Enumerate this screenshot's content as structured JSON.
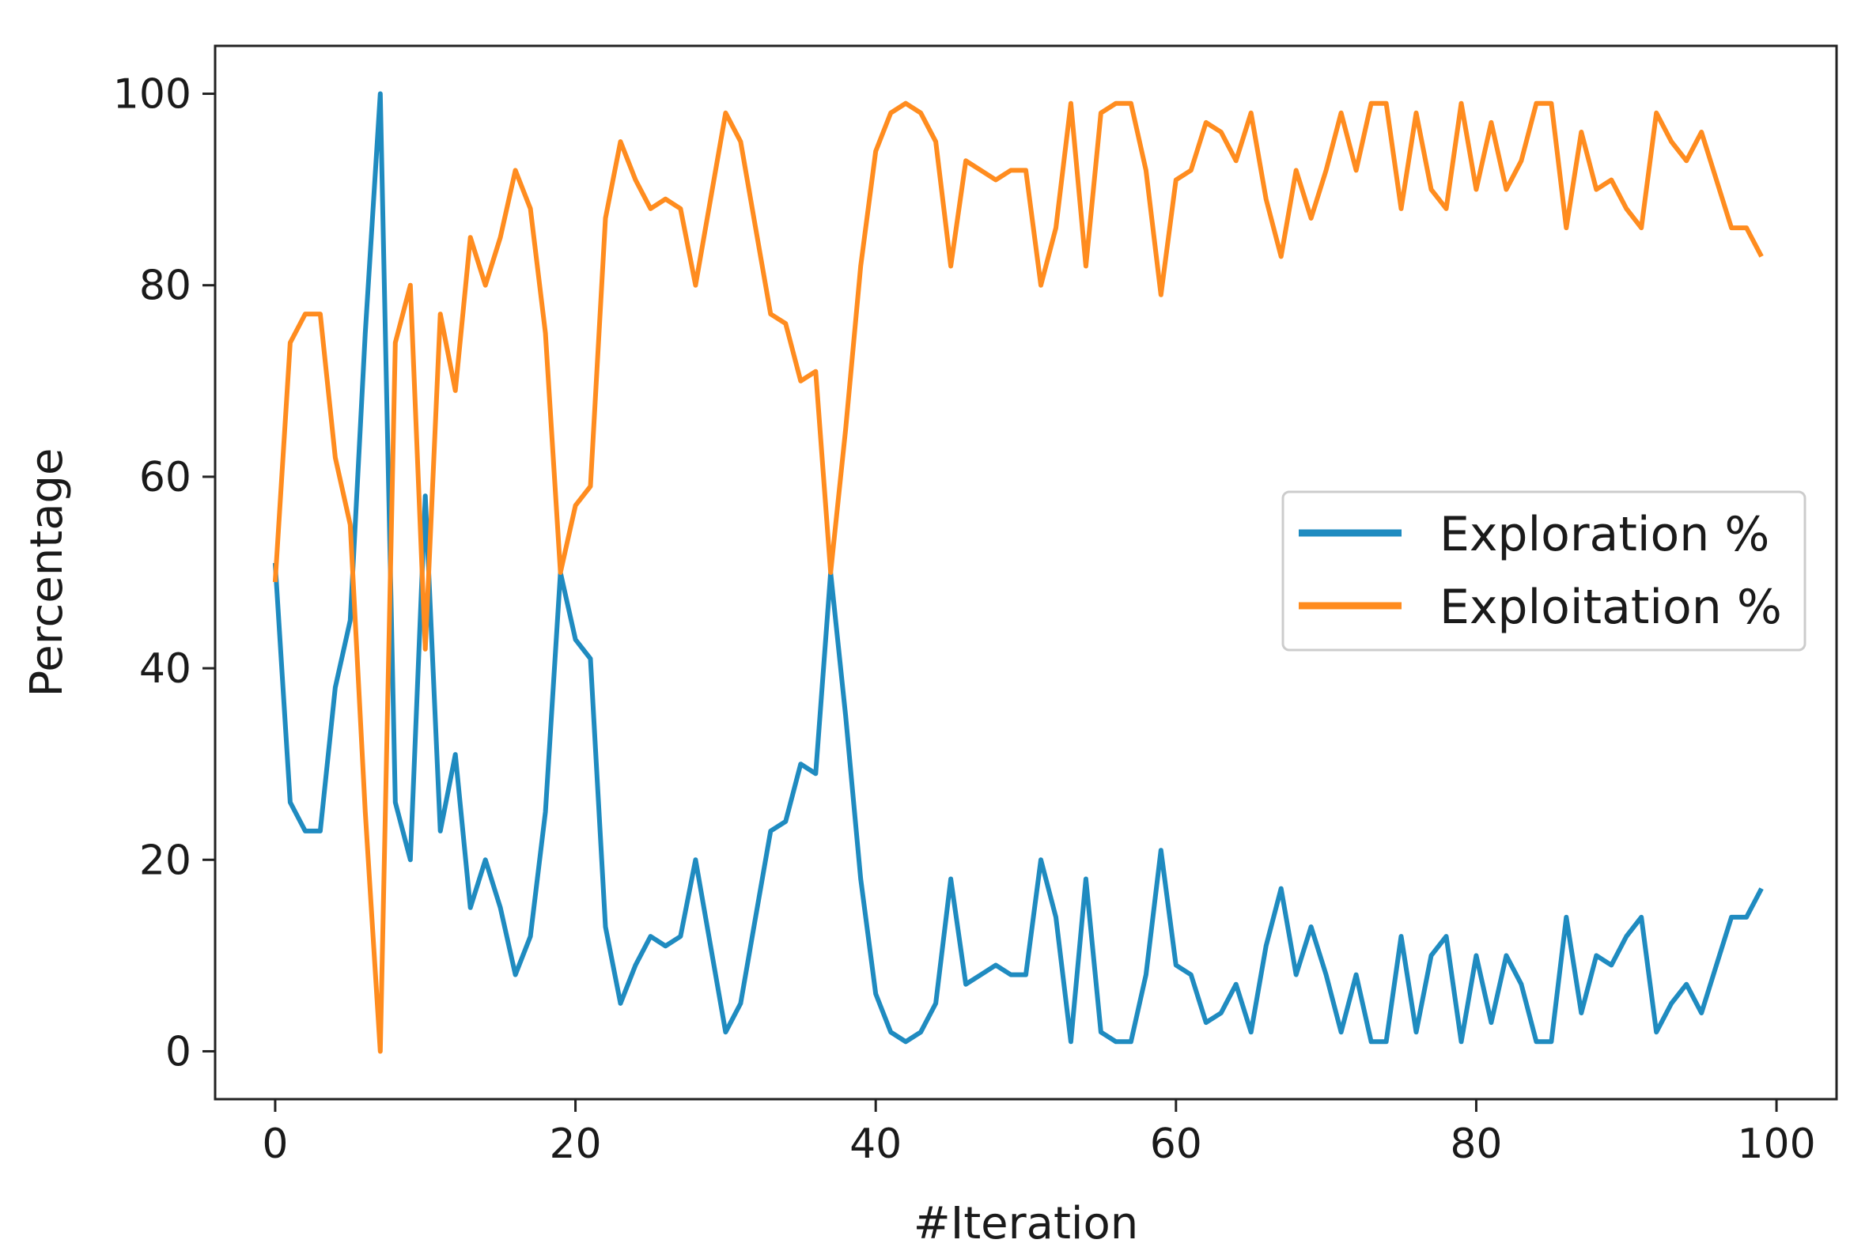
{
  "chart_data": {
    "type": "line",
    "title": "",
    "xlabel": "#Iteration",
    "ylabel": "Percentage",
    "xlim": [
      -4,
      104
    ],
    "ylim": [
      -5,
      105
    ],
    "x_ticks": [
      0,
      20,
      40,
      60,
      80,
      100
    ],
    "y_ticks": [
      0,
      20,
      40,
      60,
      80,
      100
    ],
    "x_tick_labels": [
      "0",
      "20",
      "40",
      "60",
      "80",
      "100"
    ],
    "y_tick_labels": [
      "0",
      "20",
      "40",
      "60",
      "80",
      "100"
    ],
    "grid": false,
    "legend_position": "center-right",
    "x": [
      0,
      1,
      2,
      3,
      4,
      5,
      6,
      7,
      8,
      9,
      10,
      11,
      12,
      13,
      14,
      15,
      16,
      17,
      18,
      19,
      20,
      21,
      22,
      23,
      24,
      25,
      26,
      27,
      28,
      29,
      30,
      31,
      32,
      33,
      34,
      35,
      36,
      37,
      38,
      39,
      40,
      41,
      42,
      43,
      44,
      45,
      46,
      47,
      48,
      49,
      50,
      51,
      52,
      53,
      54,
      55,
      56,
      57,
      58,
      59,
      60,
      61,
      62,
      63,
      64,
      65,
      66,
      67,
      68,
      69,
      70,
      71,
      72,
      73,
      74,
      75,
      76,
      77,
      78,
      79,
      80,
      81,
      82,
      83,
      84,
      85,
      86,
      87,
      88,
      89,
      90,
      91,
      92,
      93,
      94,
      95,
      96,
      97,
      98,
      99
    ],
    "series": [
      {
        "name": "Exploration %",
        "color": "#1f8bc0",
        "values": [
          51,
          26,
          23,
          23,
          38,
          45,
          75,
          100,
          26,
          20,
          58,
          23,
          31,
          15,
          20,
          15,
          8,
          12,
          25,
          50,
          43,
          41,
          13,
          5,
          9,
          12,
          11,
          12,
          20,
          11,
          2,
          5,
          14,
          23,
          24,
          30,
          29,
          50,
          35,
          18,
          6,
          2,
          1,
          2,
          5,
          18,
          7,
          8,
          9,
          8,
          8,
          20,
          14,
          1,
          18,
          2,
          1,
          1,
          8,
          21,
          9,
          8,
          3,
          4,
          7,
          2,
          11,
          17,
          8,
          13,
          8,
          2,
          8,
          1,
          1,
          12,
          2,
          10,
          12,
          1,
          10,
          3,
          10,
          7,
          1,
          1,
          14,
          4,
          10,
          9,
          12,
          14,
          2,
          5,
          7,
          4,
          9,
          14,
          14,
          17
        ]
      },
      {
        "name": "Exploitation %",
        "color": "#ff8c1f",
        "values": [
          49,
          74,
          77,
          77,
          62,
          55,
          25,
          0,
          74,
          80,
          42,
          77,
          69,
          85,
          80,
          85,
          92,
          88,
          75,
          50,
          57,
          59,
          87,
          95,
          91,
          88,
          89,
          88,
          80,
          89,
          98,
          95,
          86,
          77,
          76,
          70,
          71,
          50,
          65,
          82,
          94,
          98,
          99,
          98,
          95,
          82,
          93,
          92,
          91,
          92,
          92,
          80,
          86,
          99,
          82,
          98,
          99,
          99,
          92,
          79,
          91,
          92,
          97,
          96,
          93,
          98,
          89,
          83,
          92,
          87,
          92,
          98,
          92,
          99,
          99,
          88,
          98,
          90,
          88,
          99,
          90,
          97,
          90,
          93,
          99,
          99,
          86,
          96,
          90,
          91,
          88,
          86,
          98,
          95,
          93,
          96,
          91,
          86,
          86,
          83
        ]
      }
    ]
  }
}
